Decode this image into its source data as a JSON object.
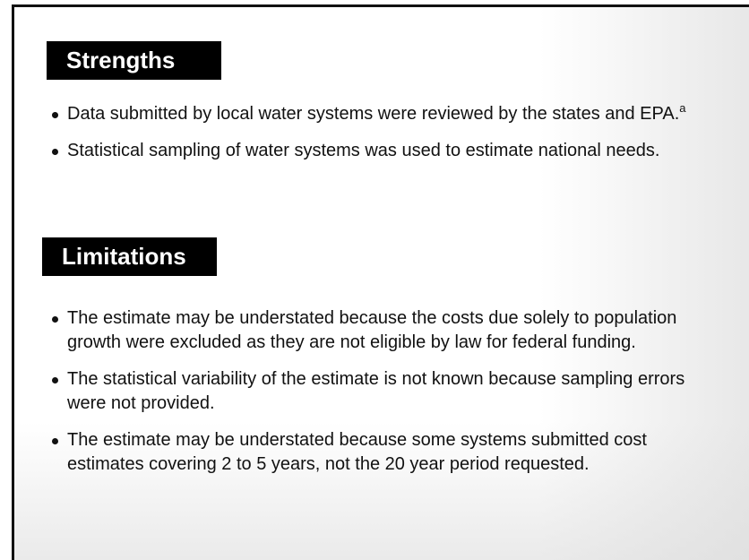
{
  "sections": [
    {
      "heading": "Strengths",
      "items": [
        {
          "text": "Data submitted by local water systems were reviewed by the states and EPA.",
          "superscript": "a"
        },
        {
          "text": "Statistical sampling of water systems was used to estimate national needs."
        }
      ]
    },
    {
      "heading": "Limitations",
      "items": [
        {
          "text": "The estimate may be understated because the costs due solely to population growth were excluded as they are not eligible by law for federal funding."
        },
        {
          "text": "The statistical variability of the estimate is not known because sampling errors were not provided."
        },
        {
          "text": "The estimate may be understated because some systems submitted cost estimates covering 2 to 5 years, not the 20 year period requested."
        }
      ]
    }
  ]
}
